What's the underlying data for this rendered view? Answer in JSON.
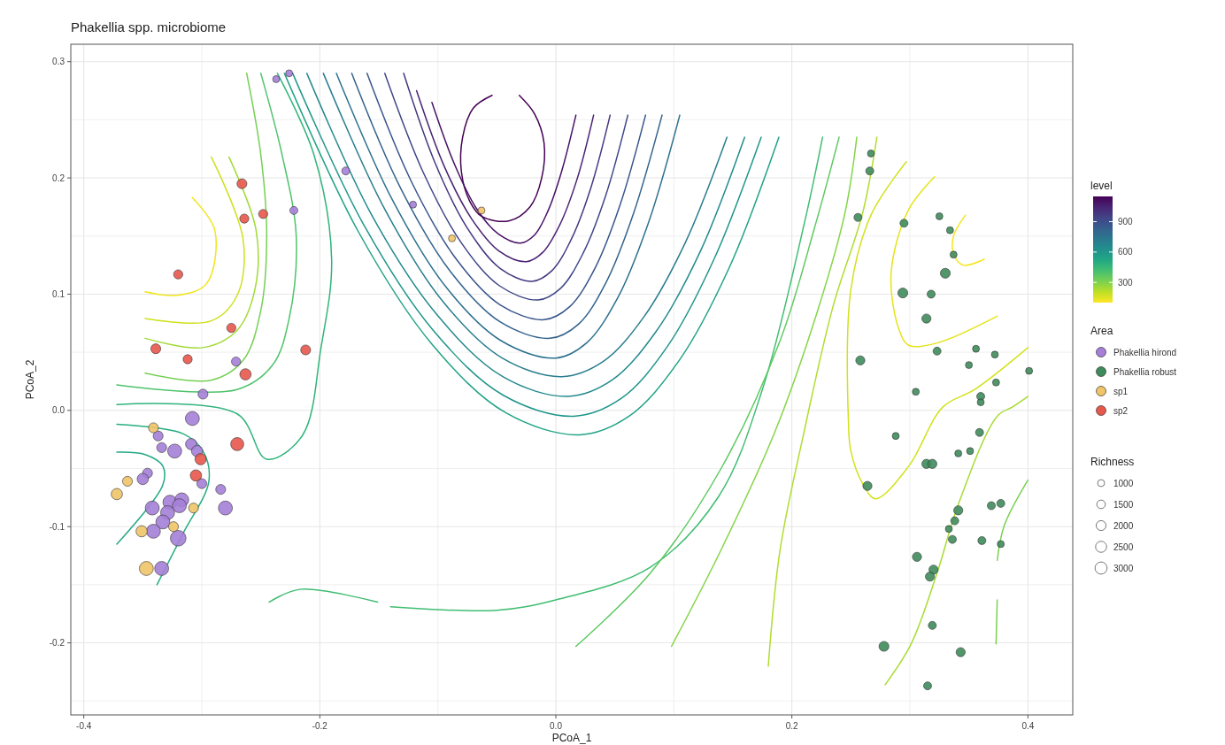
{
  "chart_data": {
    "type": "bubble",
    "title": "Phakellia spp. microbiome",
    "xlabel": "PCoA_1",
    "ylabel": "PCoA_2",
    "legend_title": "Area",
    "clabel": "level",
    "annotations": [
      "Richness"
    ],
    "xlim": [
      -0.411,
      0.438
    ],
    "ylim": [
      -0.262,
      0.315
    ],
    "xticks": [
      -0.4,
      {
        "value": -0.3,
        "label": null
      },
      -0.2,
      {
        "value": -0.1,
        "label": null
      },
      {
        "value": 0,
        "label": "0.0"
      },
      {
        "value": 0.1,
        "label": null
      },
      0.2,
      {
        "value": 0.3,
        "label": null
      },
      0.4
    ],
    "yticks": [
      {
        "value": -0.25,
        "label": null
      },
      -0.2,
      {
        "value": -0.15,
        "label": null
      },
      -0.1,
      {
        "value": -0.05,
        "label": null
      },
      {
        "value": 0,
        "label": "0.0"
      },
      {
        "value": 0.05,
        "label": null
      },
      0.1,
      {
        "value": 0.15,
        "label": null
      },
      0.2,
      {
        "value": 0.25,
        "label": null
      },
      0.3
    ],
    "grid": true,
    "legend": "right",
    "clim": [
      100,
      1150
    ],
    "cticks": [
      300,
      600,
      900
    ],
    "size_legend": [
      1000,
      1500,
      2000,
      2500,
      3000
    ],
    "series": [
      {
        "type": "line",
        "color": "#440154",
        "x": [
          -0.054,
          -0.07,
          -0.079,
          -0.08,
          -0.073,
          -0.063,
          -0.04,
          -0.022,
          -0.012,
          -0.01,
          -0.018,
          -0.031
        ],
        "values": [
          0.271,
          0.26,
          0.235,
          0.205,
          0.18,
          0.167,
          0.163,
          0.175,
          0.2,
          0.23,
          0.255,
          0.271
        ]
      },
      {
        "type": "line",
        "color": "#471164",
        "x": [
          -0.105,
          -0.086,
          -0.0675,
          -0.049,
          -0.03,
          -0.018,
          -0.0065,
          0.005,
          0.017
        ],
        "values": [
          0.265,
          0.212,
          0.174,
          0.152,
          0.144,
          0.151,
          0.172,
          0.206,
          0.254
        ]
      },
      {
        "type": "line",
        "color": "#482173",
        "x": [
          -0.118,
          -0.095,
          -0.0715,
          -0.048,
          -0.025,
          -0.011,
          0.0035,
          0.018,
          0.032
        ],
        "values": [
          0.275,
          0.211,
          0.165,
          0.137,
          0.128,
          0.136,
          0.16,
          0.199,
          0.254
        ]
      },
      {
        "type": "line",
        "color": "#453781",
        "x": [
          -0.129,
          -0.102,
          -0.0745,
          -0.047,
          -0.02,
          -0.0035,
          0.013,
          0.0295,
          0.046
        ],
        "values": [
          0.29,
          0.212,
          0.156,
          0.122,
          0.111,
          0.12,
          0.147,
          0.191,
          0.254
        ]
      },
      {
        "type": "line",
        "color": "#3f4788",
        "x": [
          -0.145,
          -0.1125,
          -0.08,
          -0.0475,
          -0.015,
          0.004,
          0.023,
          0.042,
          0.061
        ],
        "values": [
          0.29,
          0.205,
          0.144,
          0.107,
          0.095,
          0.105,
          0.135,
          0.184,
          0.254
        ]
      },
      {
        "type": "line",
        "color": "#39558c",
        "x": [
          -0.16,
          -0.1225,
          -0.085,
          -0.0475,
          -0.01,
          0.0115,
          0.033,
          0.0545,
          0.076
        ],
        "values": [
          0.29,
          0.197,
          0.131,
          0.091,
          0.078,
          0.089,
          0.122,
          0.177,
          0.254
        ]
      },
      {
        "type": "line",
        "color": "#33638d",
        "x": [
          -0.173,
          -0.131,
          -0.089,
          -0.047,
          -0.005,
          0.019,
          0.0425,
          0.066,
          0.09
        ],
        "values": [
          0.29,
          0.19,
          0.119,
          0.076,
          0.062,
          0.074,
          0.11,
          0.17,
          0.254
        ]
      },
      {
        "type": "line",
        "color": "#2d708e",
        "x": [
          -0.186,
          -0.1395,
          -0.093,
          -0.0465,
          0,
          0.026,
          0.0525,
          0.079,
          0.105
        ],
        "values": [
          0.29,
          0.183,
          0.106,
          0.06,
          0.045,
          0.058,
          0.097,
          0.163,
          0.254
        ]
      },
      {
        "type": "line",
        "color": "#287d8e",
        "x": [
          -0.197,
          -0.1465,
          -0.096,
          -0.0455,
          0.005,
          0.04,
          0.075,
          0.11,
          0.145
        ],
        "values": [
          0.29,
          0.176,
          0.094,
          0.045,
          0.029,
          0.042,
          0.081,
          0.145,
          0.235
        ]
      },
      {
        "type": "line",
        "color": "#238a8d",
        "x": [
          -0.211,
          -0.156,
          -0.1005,
          -0.045,
          0.01,
          0.0475,
          0.085,
          0.1225,
          0.16
        ],
        "values": [
          0.29,
          0.168,
          0.082,
          0.029,
          0.012,
          0.026,
          0.068,
          0.137,
          0.235
        ]
      },
      {
        "type": "line",
        "color": "#20968b",
        "x": [
          -0.223,
          -0.1635,
          -0.104,
          -0.0445,
          0.015,
          0.055,
          0.0945,
          0.134,
          0.174
        ],
        "values": [
          0.29,
          0.161,
          0.069,
          0.013,
          -0.005,
          0.01,
          0.055,
          0.13,
          0.235
        ]
      },
      {
        "type": "line",
        "color": "#21a386",
        "x": [
          -0.23,
          -0.1675,
          -0.105,
          -0.0425,
          0.02,
          0.062,
          0.1045,
          0.147,
          0.189
        ],
        "values": [
          0.29,
          0.154,
          0.057,
          -0.002,
          -0.021,
          -0.005,
          0.043,
          0.123,
          0.235
        ]
      },
      {
        "type": "line",
        "color": "#2fb47c",
        "x": [
          -0.372,
          -0.27,
          -0.245,
          -0.215,
          -0.199,
          -0.19,
          -0.205,
          -0.236
        ],
        "values": [
          0.005,
          -0.003,
          -0.042,
          -0.022,
          0.054,
          0.13,
          0.22,
          0.29
        ]
      },
      {
        "type": "line",
        "color": "#4ec36b",
        "x": [
          -0.372,
          -0.27,
          -0.24,
          -0.226,
          -0.22,
          -0.232,
          -0.25
        ],
        "values": [
          0.022,
          0.018,
          0.039,
          0.079,
          0.15,
          0.22,
          0.29
        ]
      },
      {
        "type": "line",
        "color": "#75d054",
        "x": [
          -0.348,
          -0.292,
          -0.265,
          -0.25,
          -0.245,
          -0.25,
          -0.262
        ],
        "values": [
          0.032,
          0.026,
          0.043,
          0.086,
          0.15,
          0.22,
          0.29
        ]
      },
      {
        "type": "line",
        "color": "#a2da37",
        "x": [
          -0.348,
          -0.299,
          -0.27,
          -0.255,
          -0.254,
          -0.277
        ],
        "values": [
          0.062,
          0.054,
          0.069,
          0.104,
          0.155,
          0.218
        ]
      },
      {
        "type": "line",
        "color": "#cde11d",
        "x": [
          -0.348,
          -0.292,
          -0.27,
          -0.265,
          -0.292
        ],
        "values": [
          0.079,
          0.077,
          0.099,
          0.147,
          0.218
        ]
      },
      {
        "type": "line",
        "color": "#f1e51d",
        "x": [
          -0.348,
          -0.321,
          -0.296,
          -0.289,
          -0.308
        ],
        "values": [
          0.102,
          0.099,
          0.109,
          0.155,
          0.183
        ]
      },
      {
        "type": "line",
        "color": "#28ae80",
        "x": [
          -0.372,
          -0.316,
          -0.299,
          -0.294,
          -0.316,
          -0.338
        ],
        "values": [
          -0.012,
          -0.02,
          -0.035,
          -0.061,
          -0.106,
          -0.15
        ]
      },
      {
        "type": "line",
        "color": "#22a884",
        "x": [
          -0.372,
          -0.348,
          -0.333,
          -0.333,
          -0.372
        ],
        "values": [
          -0.036,
          -0.038,
          -0.048,
          -0.064,
          -0.115
        ]
      },
      {
        "type": "line",
        "color": "#40bd72",
        "x": [
          -0.14,
          -0.05,
          0.0,
          0.08,
          0.138,
          0.175,
          0.211,
          0.226
        ],
        "values": [
          -0.169,
          -0.172,
          -0.163,
          -0.135,
          -0.074,
          0.018,
          0.163,
          0.235
        ]
      },
      {
        "type": "line",
        "color": "#40bd72",
        "x": [
          -0.243,
          -0.217,
          -0.151
        ],
        "values": [
          -0.165,
          -0.154,
          -0.165
        ]
      },
      {
        "type": "line",
        "color": "#5ec962",
        "x": [
          0.017,
          0.08,
          0.14,
          0.19,
          0.22,
          0.24
        ],
        "values": [
          -0.203,
          -0.14,
          -0.05,
          0.06,
          0.16,
          0.235
        ]
      },
      {
        "type": "line",
        "color": "#86d549",
        "x": [
          0.098,
          0.14,
          0.185,
          0.22,
          0.245,
          0.255
        ],
        "values": [
          -0.203,
          -0.12,
          -0.02,
          0.08,
          0.17,
          0.235
        ]
      },
      {
        "type": "line",
        "color": "#b0dd2f",
        "x": [
          0.18,
          0.19,
          0.21,
          0.235,
          0.26,
          0.272
        ],
        "values": [
          -0.22,
          -0.12,
          -0.02,
          0.09,
          0.17,
          0.235
        ]
      },
      {
        "type": "line",
        "color": "#e5e419",
        "x": [
          0.321,
          0.299,
          0.284,
          0.291,
          0.299,
          0.323,
          0.374
        ],
        "values": [
          0.201,
          0.173,
          0.117,
          0.069,
          0.056,
          0.058,
          0.081
        ]
      },
      {
        "type": "line",
        "color": "#f5e61f",
        "x": [
          0.347,
          0.337,
          0.337,
          0.345,
          0.363
        ],
        "values": [
          0.168,
          0.15,
          0.135,
          0.125,
          0.13
        ]
      },
      {
        "type": "line",
        "color": "#d2e21b",
        "x": [
          0.297,
          0.267,
          0.25,
          0.248,
          0.25,
          0.26,
          0.271,
          0.299,
          0.328,
          0.355,
          0.4
        ],
        "values": [
          0.214,
          0.168,
          0.104,
          -0.012,
          -0.035,
          -0.063,
          -0.076,
          -0.048,
          0.003,
          0.018,
          0.054
        ]
      },
      {
        "type": "line",
        "color": "#a8db34",
        "x": [
          0.279,
          0.301,
          0.323,
          0.341,
          0.374,
          0.387,
          0.4
        ],
        "values": [
          -0.236,
          -0.201,
          -0.14,
          -0.081,
          -0.005,
          0.003,
          0.012
        ]
      },
      {
        "type": "line",
        "color": "#7ad151",
        "x": [
          0.374,
          0.38,
          0.4
        ],
        "values": [
          -0.129,
          -0.099,
          -0.06
        ]
      },
      {
        "type": "line",
        "color": "#7ad151",
        "x": [
          0.373,
          0.374
        ],
        "values": [
          -0.201,
          -0.163
        ]
      },
      {
        "name": "Phakellia hirond",
        "color": "#a57fd8",
        "x": [
          -0.222,
          -0.178,
          -0.237,
          -0.226,
          -0.121,
          -0.271,
          -0.299,
          -0.308,
          -0.337,
          -0.334,
          -0.323,
          -0.309,
          -0.304,
          -0.3,
          -0.346,
          -0.35,
          -0.284,
          -0.28,
          -0.342,
          -0.327,
          -0.317,
          -0.319,
          -0.329,
          -0.333,
          -0.341,
          -0.32,
          -0.334
        ],
        "values": [
          0.172,
          0.206,
          0.285,
          0.29,
          0.177,
          0.042,
          0.014,
          -0.007,
          -0.022,
          -0.032,
          -0.035,
          -0.029,
          -0.035,
          -0.063,
          -0.054,
          -0.059,
          -0.068,
          -0.084,
          -0.084,
          -0.079,
          -0.077,
          -0.082,
          -0.088,
          -0.096,
          -0.104,
          -0.11,
          -0.136
        ],
        "sizes": [
          1300,
          1300,
          1000,
          1000,
          1000,
          1700,
          2000,
          4000,
          2000,
          2000,
          4000,
          2600,
          2600,
          2000,
          2000,
          2600,
          2000,
          4000,
          4000,
          4000,
          4000,
          4000,
          4000,
          4000,
          4000,
          5000,
          4000
        ]
      },
      {
        "name": "Phakellia robust",
        "color": "#3f8b5c",
        "x": [
          0.267,
          0.266,
          0.256,
          0.295,
          0.325,
          0.334,
          0.337,
          0.33,
          0.294,
          0.318,
          0.314,
          0.258,
          0.323,
          0.356,
          0.372,
          0.35,
          0.401,
          0.373,
          0.305,
          0.36,
          0.36,
          0.288,
          0.359,
          0.341,
          0.351,
          0.314,
          0.319,
          0.264,
          0.341,
          0.338,
          0.333,
          0.336,
          0.369,
          0.377,
          0.361,
          0.377,
          0.306,
          0.32,
          0.317,
          0.319,
          0.278,
          0.343,
          0.315
        ],
        "values": [
          0.221,
          0.206,
          0.166,
          0.161,
          0.167,
          0.155,
          0.134,
          0.118,
          0.101,
          0.1,
          0.079,
          0.043,
          0.051,
          0.053,
          0.048,
          0.039,
          0.034,
          0.024,
          0.016,
          0.012,
          0.007,
          -0.022,
          -0.019,
          -0.037,
          -0.035,
          -0.046,
          -0.046,
          -0.065,
          -0.086,
          -0.095,
          -0.102,
          -0.111,
          -0.082,
          -0.08,
          -0.112,
          -0.115,
          -0.126,
          -0.137,
          -0.143,
          -0.185,
          -0.203,
          -0.208,
          -0.237
        ],
        "sizes": [
          1000,
          1300,
          1300,
          1300,
          1000,
          1000,
          1000,
          2000,
          2000,
          1300,
          1700,
          1700,
          1300,
          1000,
          1000,
          1000,
          1000,
          1000,
          1000,
          1300,
          1000,
          1000,
          1300,
          1000,
          1000,
          1700,
          1700,
          1700,
          1700,
          1300,
          1000,
          1300,
          1300,
          1300,
          1300,
          1000,
          1700,
          1700,
          1700,
          1300,
          2000,
          1700,
          1300
        ]
      },
      {
        "name": "sp1",
        "color": "#f0c468",
        "x": [
          -0.088,
          -0.063,
          -0.341,
          -0.363,
          -0.372,
          -0.307,
          -0.351,
          -0.324,
          -0.347
        ],
        "values": [
          0.148,
          0.172,
          -0.015,
          -0.061,
          -0.072,
          -0.084,
          -0.104,
          -0.1,
          -0.136
        ],
        "sizes": [
          1000,
          1000,
          2000,
          2000,
          2600,
          2000,
          2600,
          2000,
          4000
        ]
      },
      {
        "name": "sp2",
        "color": "#e8574c",
        "x": [
          -0.266,
          -0.264,
          -0.248,
          -0.32,
          -0.275,
          -0.339,
          -0.312,
          -0.263,
          -0.212,
          -0.27,
          -0.301,
          -0.305
        ],
        "values": [
          0.195,
          0.165,
          0.169,
          0.117,
          0.071,
          0.053,
          0.044,
          0.031,
          0.052,
          -0.029,
          -0.042,
          -0.056
        ],
        "sizes": [
          2000,
          1700,
          1700,
          1700,
          1700,
          2000,
          1700,
          2600,
          2000,
          3500,
          2600,
          2600
        ]
      }
    ]
  }
}
